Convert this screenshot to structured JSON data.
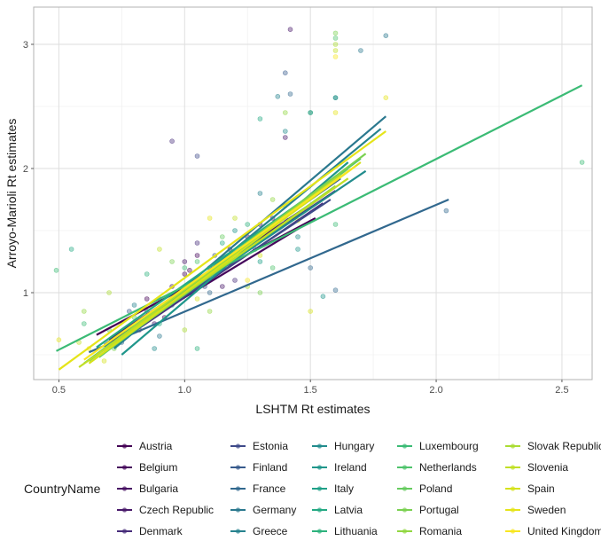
{
  "chart_data": {
    "type": "scatter",
    "xlabel": "LSHTM Rt estimates",
    "ylabel": "Arroyo-Marioli Rt estimates",
    "xlim": [
      0.4,
      2.62
    ],
    "ylim": [
      0.3,
      3.3
    ],
    "x_ticks": [
      {
        "value": 0.5,
        "label": "0.5"
      },
      {
        "value": 1.0,
        "label": "1.0"
      },
      {
        "value": 1.5,
        "label": "1.5"
      },
      {
        "value": 2.0,
        "label": "2.0"
      },
      {
        "value": 2.5,
        "label": "2.5"
      }
    ],
    "y_ticks": [
      {
        "value": 1,
        "label": "1"
      },
      {
        "value": 2,
        "label": "2"
      },
      {
        "value": 3,
        "label": "3"
      }
    ],
    "grid": true,
    "point_opacity": 0.4,
    "legend": {
      "title": "CountryName",
      "position": "bottom",
      "columns": 5
    },
    "series": [
      {
        "name": "Austria",
        "color": "#440154",
        "fit": [
          [
            0.65,
            0.66
          ],
          [
            1.52,
            1.6
          ]
        ],
        "points": [
          [
            0.85,
            0.95
          ],
          [
            1.02,
            1.18
          ],
          [
            1.18,
            1.35
          ],
          [
            0.92,
            0.8
          ]
        ]
      },
      {
        "name": "Belgium",
        "color": "#46085c",
        "fit": [
          [
            0.68,
            0.57
          ],
          [
            1.48,
            1.55
          ]
        ],
        "points": [
          [
            0.82,
            0.7
          ],
          [
            1.0,
            1.15
          ],
          [
            1.25,
            1.45
          ],
          [
            1.05,
            1.3
          ]
        ]
      },
      {
        "name": "Bulgaria",
        "color": "#471063",
        "fit": [
          [
            0.7,
            0.62
          ],
          [
            1.55,
            1.78
          ]
        ],
        "points": [
          [
            0.95,
            1.05
          ],
          [
            1.1,
            1.2
          ],
          [
            1.3,
            1.55
          ],
          [
            0.88,
            0.75
          ]
        ]
      },
      {
        "name": "Czech Republic",
        "color": "#48186a",
        "fit": [
          [
            0.72,
            0.62
          ],
          [
            1.6,
            1.82
          ]
        ],
        "points": [
          [
            1.0,
            1.25
          ],
          [
            1.15,
            1.05
          ],
          [
            1.35,
            1.6
          ],
          [
            1.42,
            3.12
          ],
          [
            1.4,
            2.25
          ]
        ]
      },
      {
        "name": "Denmark",
        "color": "#472d7b",
        "fit": [
          [
            0.7,
            0.55
          ],
          [
            1.55,
            1.72
          ]
        ],
        "points": [
          [
            0.85,
            0.85
          ],
          [
            1.05,
            1.4
          ],
          [
            1.2,
            1.1
          ],
          [
            0.95,
            2.22
          ]
        ]
      },
      {
        "name": "Estonia",
        "color": "#3e4a89",
        "fit": [
          [
            0.72,
            0.6
          ],
          [
            1.58,
            1.75
          ]
        ],
        "points": [
          [
            0.9,
            0.95
          ],
          [
            1.08,
            1.05
          ],
          [
            1.28,
            1.35
          ],
          [
            1.05,
            2.1
          ]
        ]
      },
      {
        "name": "Finland",
        "color": "#375a8c",
        "fit": [
          [
            0.68,
            0.58
          ],
          [
            1.62,
            1.92
          ]
        ],
        "points": [
          [
            0.78,
            0.85
          ],
          [
            1.12,
            1.3
          ],
          [
            1.33,
            1.5
          ],
          [
            1.4,
            2.77
          ]
        ]
      },
      {
        "name": "France",
        "color": "#31688e",
        "fit": [
          [
            0.62,
            0.52
          ],
          [
            2.05,
            1.75
          ]
        ],
        "points": [
          [
            0.75,
            0.6
          ],
          [
            1.1,
            1.0
          ],
          [
            1.5,
            1.2
          ],
          [
            2.04,
            1.66
          ],
          [
            1.6,
            1.02
          ],
          [
            1.42,
            2.6
          ]
        ]
      },
      {
        "name": "Germany",
        "color": "#2a788e",
        "fit": [
          [
            0.72,
            0.56
          ],
          [
            1.8,
            2.42
          ]
        ],
        "points": [
          [
            0.9,
            0.65
          ],
          [
            1.15,
            1.25
          ],
          [
            1.4,
            1.6
          ],
          [
            1.6,
            2.57
          ],
          [
            1.8,
            3.07
          ],
          [
            1.7,
            2.95
          ]
        ]
      },
      {
        "name": "Greece",
        "color": "#26828e",
        "fit": [
          [
            0.72,
            0.55
          ],
          [
            1.78,
            2.32
          ]
        ],
        "points": [
          [
            0.8,
            0.9
          ],
          [
            1.0,
            1.0
          ],
          [
            1.3,
            1.8
          ],
          [
            1.5,
            2.45
          ],
          [
            1.37,
            2.58
          ]
        ]
      },
      {
        "name": "Hungary",
        "color": "#228c8d",
        "fit": [
          [
            0.7,
            0.58
          ],
          [
            1.72,
            1.98
          ]
        ],
        "points": [
          [
            0.88,
            0.55
          ],
          [
            1.1,
            1.1
          ],
          [
            1.45,
            1.45
          ],
          [
            1.4,
            2.3
          ]
        ]
      },
      {
        "name": "Ireland",
        "color": "#1f968b",
        "fit": [
          [
            0.75,
            0.5
          ],
          [
            1.65,
            2.05
          ]
        ],
        "points": [
          [
            0.95,
            0.9
          ],
          [
            1.2,
            1.5
          ],
          [
            1.45,
            1.35
          ],
          [
            1.55,
            0.97
          ]
        ]
      },
      {
        "name": "Italy",
        "color": "#1fa088",
        "fit": [
          [
            0.7,
            0.55
          ],
          [
            1.6,
            1.85
          ]
        ],
        "points": [
          [
            0.75,
            0.65
          ],
          [
            1.05,
            1.05
          ],
          [
            1.3,
            1.25
          ],
          [
            1.6,
            2.57
          ]
        ]
      },
      {
        "name": "Latvia",
        "color": "#23a983",
        "fit": [
          [
            0.65,
            0.56
          ],
          [
            1.58,
            1.9
          ]
        ],
        "points": [
          [
            0.55,
            1.35
          ],
          [
            0.9,
            0.75
          ],
          [
            1.15,
            1.4
          ],
          [
            1.3,
            2.4
          ]
        ]
      },
      {
        "name": "Lithuania",
        "color": "#2db27d",
        "fit": [
          [
            0.7,
            0.57
          ],
          [
            1.62,
            1.95
          ]
        ],
        "points": [
          [
            0.85,
            1.15
          ],
          [
            1.05,
            0.55
          ],
          [
            1.25,
            1.55
          ],
          [
            1.5,
            2.45
          ]
        ]
      },
      {
        "name": "Luxembourg",
        "color": "#3bbb75",
        "fit": [
          [
            0.49,
            0.53
          ],
          [
            2.58,
            2.67
          ]
        ],
        "points": [
          [
            0.49,
            1.18
          ],
          [
            0.6,
            0.75
          ],
          [
            1.0,
            1.2
          ],
          [
            1.6,
            1.55
          ],
          [
            2.58,
            2.05
          ]
        ]
      },
      {
        "name": "Netherlands",
        "color": "#4ec36b",
        "fit": [
          [
            0.6,
            0.43
          ],
          [
            1.7,
            2.08
          ]
        ],
        "points": [
          [
            0.7,
            0.7
          ],
          [
            1.05,
            1.25
          ],
          [
            1.35,
            1.2
          ],
          [
            1.6,
            3.05
          ]
        ]
      },
      {
        "name": "Poland",
        "color": "#65cb5e",
        "fit": [
          [
            0.66,
            0.48
          ],
          [
            1.65,
            2.0
          ]
        ],
        "points": [
          [
            0.8,
            0.8
          ],
          [
            1.15,
            1.45
          ],
          [
            1.4,
            1.7
          ]
        ]
      },
      {
        "name": "Portugal",
        "color": "#7ad151",
        "fit": [
          [
            0.62,
            0.45
          ],
          [
            1.72,
            2.12
          ]
        ],
        "points": [
          [
            0.72,
            0.55
          ],
          [
            0.95,
            1.25
          ],
          [
            1.3,
            1.0
          ],
          [
            1.6,
            3.09
          ]
        ]
      },
      {
        "name": "Romania",
        "color": "#92d742",
        "fit": [
          [
            0.68,
            0.52
          ],
          [
            1.6,
            1.86
          ]
        ],
        "points": [
          [
            0.6,
            0.85
          ],
          [
            1.1,
            0.85
          ],
          [
            1.35,
            1.75
          ],
          [
            1.4,
            2.45
          ]
        ]
      },
      {
        "name": "Slovak Republic",
        "color": "#aadc32",
        "fit": [
          [
            0.65,
            0.5
          ],
          [
            1.62,
            1.95
          ]
        ],
        "points": [
          [
            0.7,
            1.0
          ],
          [
            1.0,
            0.7
          ],
          [
            1.25,
            1.05
          ],
          [
            1.6,
            3.0
          ]
        ]
      },
      {
        "name": "Slovenia",
        "color": "#c0df25",
        "fit": [
          [
            0.58,
            0.4
          ],
          [
            1.65,
            1.92
          ]
        ],
        "points": [
          [
            0.58,
            0.6
          ],
          [
            0.9,
            1.35
          ],
          [
            1.2,
            1.6
          ],
          [
            1.6,
            2.95
          ]
        ]
      },
      {
        "name": "Spain",
        "color": "#d5e21a",
        "fit": [
          [
            0.62,
            0.43
          ],
          [
            1.7,
            2.05
          ]
        ],
        "points": [
          [
            0.68,
            0.45
          ],
          [
            1.05,
            0.95
          ],
          [
            1.3,
            1.3
          ],
          [
            1.5,
            0.85
          ]
        ]
      },
      {
        "name": "Sweden",
        "color": "#e5e419",
        "fit": [
          [
            0.5,
            0.38
          ],
          [
            1.8,
            2.3
          ]
        ],
        "points": [
          [
            0.5,
            0.62
          ],
          [
            1.1,
            1.6
          ],
          [
            1.6,
            2.45
          ],
          [
            1.8,
            2.57
          ],
          [
            1.45,
            1.58
          ]
        ]
      },
      {
        "name": "United Kingdom",
        "color": "#f8e621",
        "fit": [
          [
            0.6,
            0.46
          ],
          [
            1.68,
            2.02
          ]
        ],
        "points": [
          [
            0.62,
            0.55
          ],
          [
            0.98,
            0.98
          ],
          [
            1.25,
            1.1
          ],
          [
            1.6,
            2.9
          ]
        ]
      }
    ]
  }
}
